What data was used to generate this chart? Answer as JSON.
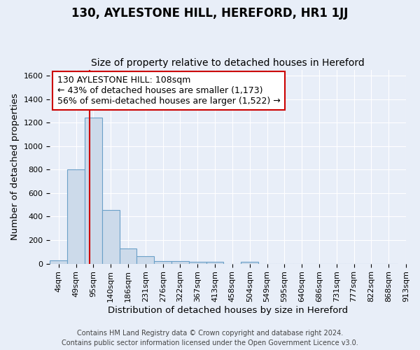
{
  "title": "130, AYLESTONE HILL, HEREFORD, HR1 1JJ",
  "subtitle": "Size of property relative to detached houses in Hereford",
  "xlabel": "Distribution of detached houses by size in Hereford",
  "ylabel": "Number of detached properties",
  "footnote1": "Contains HM Land Registry data © Crown copyright and database right 2024.",
  "footnote2": "Contains public sector information licensed under the Open Government Licence v3.0.",
  "bin_labels": [
    "4sqm",
    "49sqm",
    "95sqm",
    "140sqm",
    "186sqm",
    "231sqm",
    "276sqm",
    "322sqm",
    "367sqm",
    "413sqm",
    "458sqm",
    "504sqm",
    "549sqm",
    "595sqm",
    "640sqm",
    "686sqm",
    "731sqm",
    "777sqm",
    "822sqm",
    "868sqm",
    "913sqm"
  ],
  "bar_heights": [
    25,
    800,
    1240,
    455,
    130,
    65,
    20,
    20,
    15,
    15,
    0,
    15,
    0,
    0,
    0,
    0,
    0,
    0,
    0,
    0
  ],
  "bar_color": "#ccdaea",
  "bar_edge_color": "#6aa0c8",
  "bar_edge_width": 0.8,
  "red_line_x": 1.5,
  "red_line_color": "#cc0000",
  "annotation_text": "130 AYLESTONE HILL: 108sqm\n← 43% of detached houses are smaller (1,173)\n56% of semi-detached houses are larger (1,522) →",
  "annotation_box_color": "#ffffff",
  "annotation_box_edge": "#cc0000",
  "ylim": [
    0,
    1650
  ],
  "yticks": [
    0,
    200,
    400,
    600,
    800,
    1000,
    1200,
    1400,
    1600
  ],
  "background_color": "#e8eef8",
  "grid_color": "#ffffff",
  "title_fontsize": 12,
  "subtitle_fontsize": 10,
  "axis_label_fontsize": 9.5,
  "tick_fontsize": 8,
  "annotation_fontsize": 9,
  "footnote_fontsize": 7
}
